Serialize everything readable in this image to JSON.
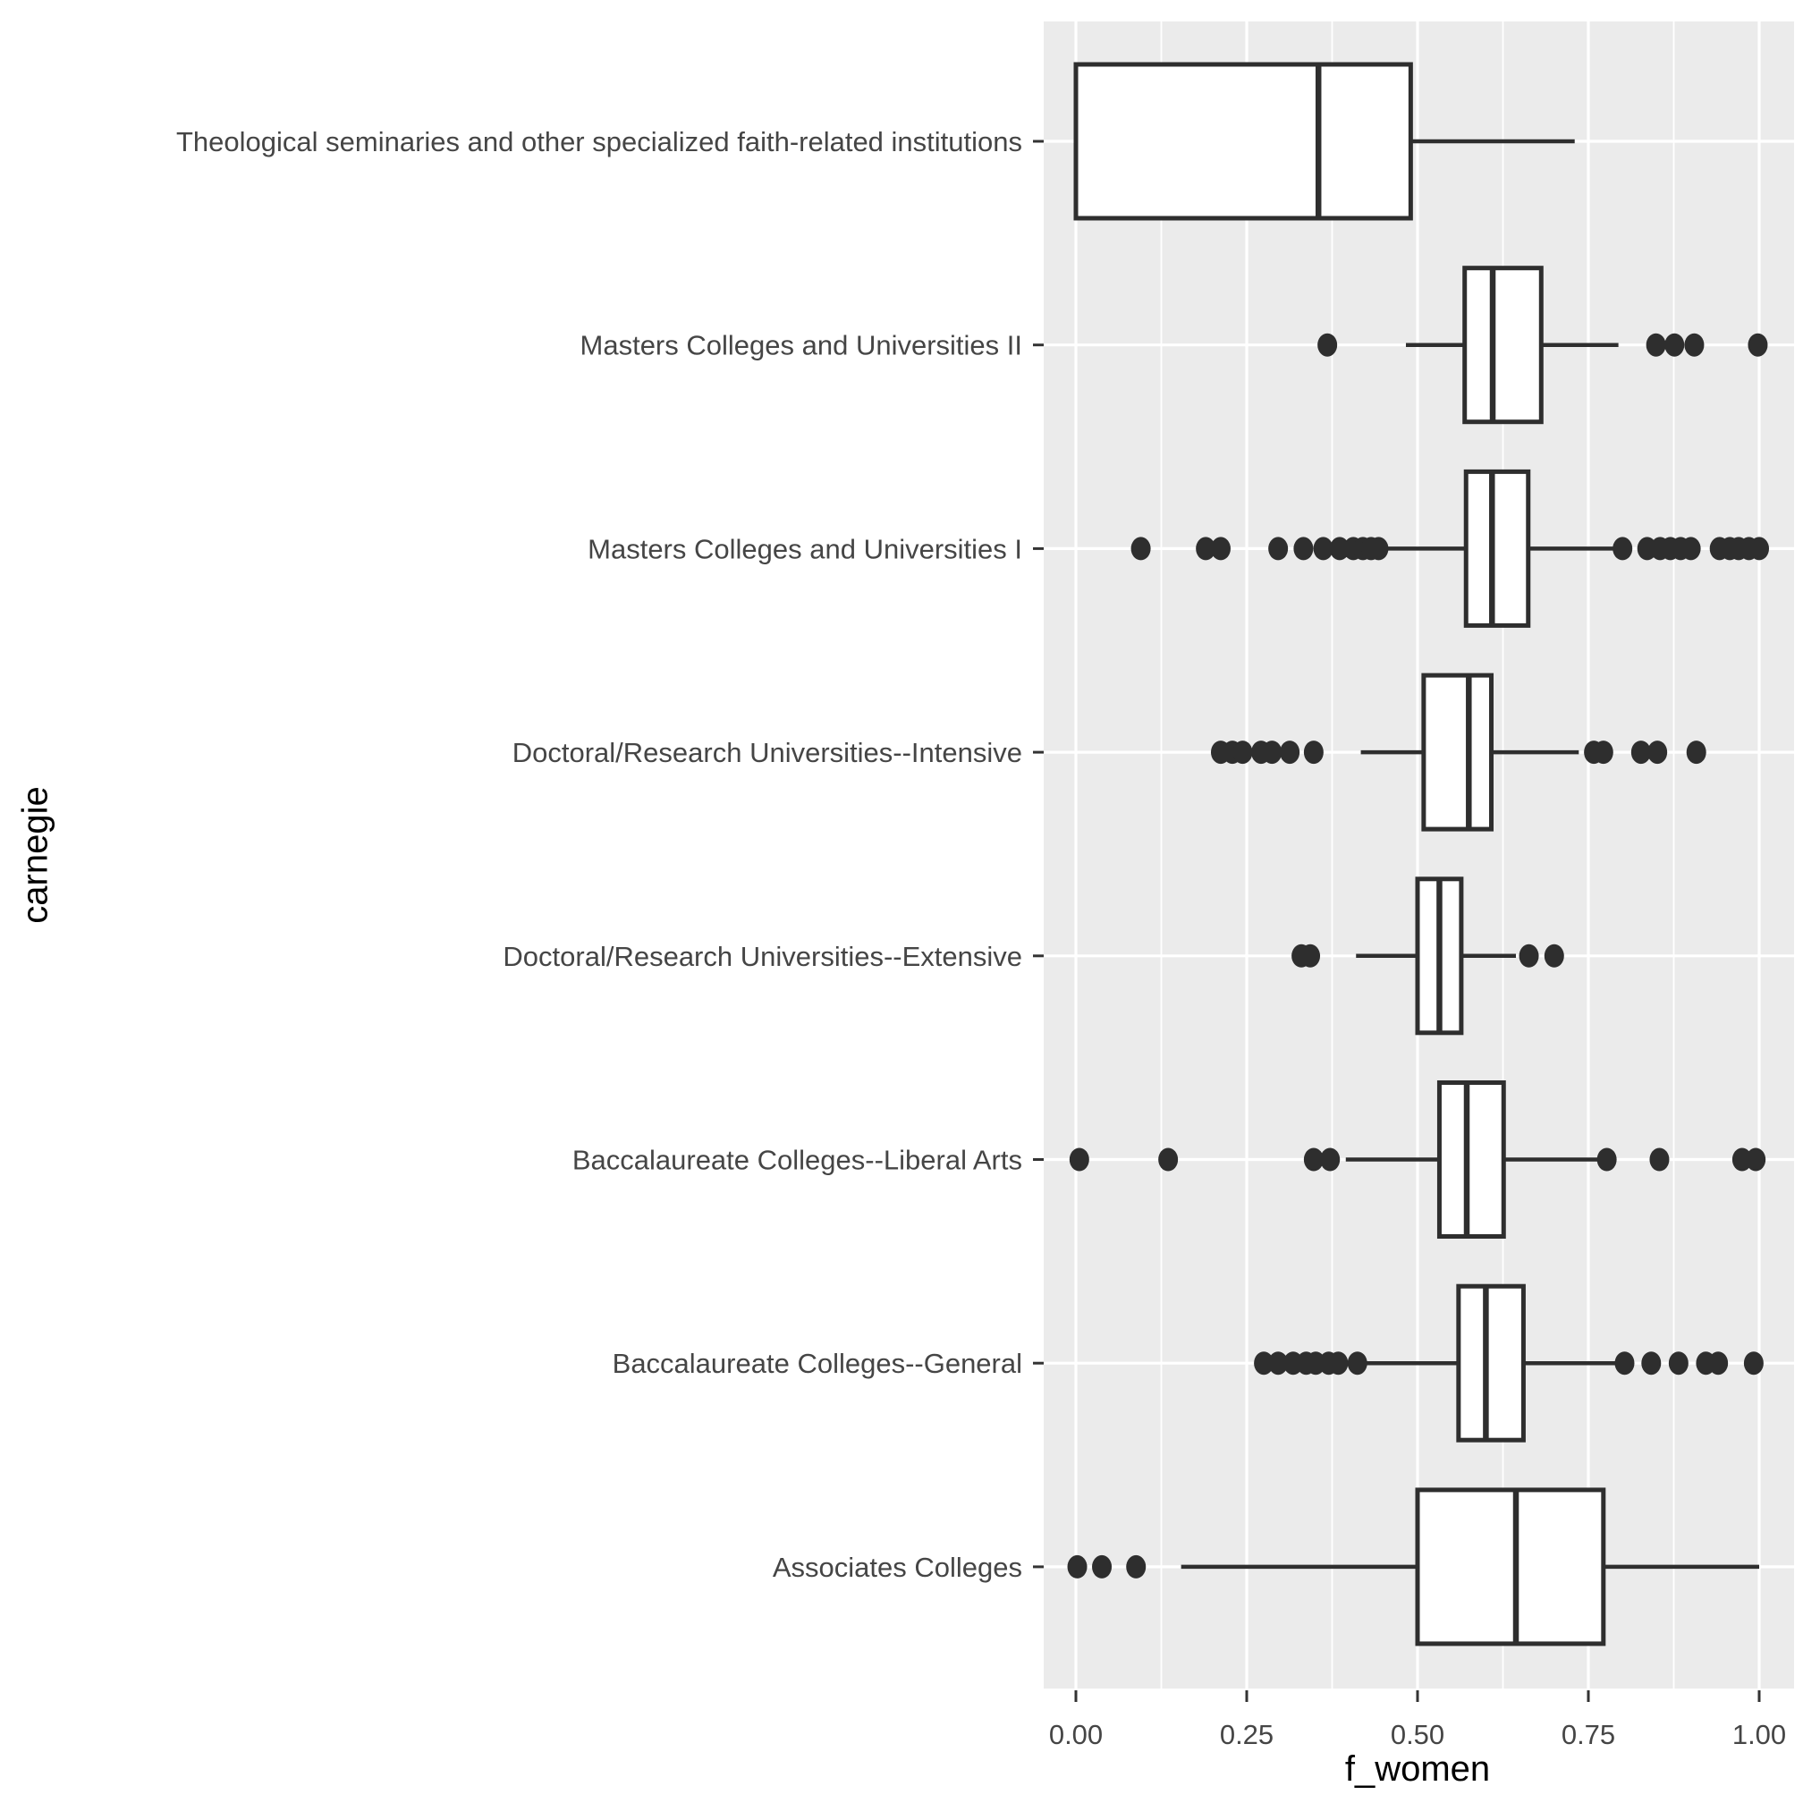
{
  "chart_data": {
    "type": "boxplot",
    "orientation": "horizontal",
    "title": "",
    "xlabel": "f_women",
    "ylabel": "carnegie",
    "x_axis": {
      "ticks": [
        0.0,
        0.25,
        0.5,
        0.75,
        1.0
      ],
      "tick_labels": [
        "0.00",
        "0.25",
        "0.50",
        "0.75",
        "1.00"
      ],
      "minor_ticks": [
        0.125,
        0.375,
        0.625,
        0.875
      ],
      "range": [
        0.0,
        1.0
      ]
    },
    "legend": "none",
    "grid": "major-and-minor-vertical, major-horizontal",
    "panel": {
      "background": "#EBEBEB",
      "grid_color": "#FFFFFF"
    },
    "style": {
      "box_fill": "#FFFFFF",
      "line_color": "#2E2E2E",
      "outlier_color": "#2E2E2E",
      "axis_text_color": "#454545",
      "axis_title_color": "#000000",
      "tick_color": "#333333"
    },
    "categories": [
      {
        "label": "Theological seminaries and other specialized faith-related institutions",
        "whisker_low": 0.0,
        "q1": 0.0,
        "median": 0.355,
        "q3": 0.49,
        "whisker_high": 0.73,
        "outliers": []
      },
      {
        "label": "Masters Colleges and Universities II",
        "whisker_low": 0.483,
        "q1": 0.569,
        "median": 0.61,
        "q3": 0.681,
        "whisker_high": 0.794,
        "outliers": [
          0.368,
          0.849,
          0.876,
          0.905,
          0.998
        ]
      },
      {
        "label": "Masters Colleges and Universities I",
        "whisker_low": 0.45,
        "q1": 0.571,
        "median": 0.609,
        "q3": 0.662,
        "whisker_high": 0.788,
        "outliers": [
          0.095,
          0.19,
          0.212,
          0.296,
          0.333,
          0.362,
          0.386,
          0.406,
          0.42,
          0.432,
          0.443,
          0.8,
          0.836,
          0.855,
          0.87,
          0.885,
          0.9,
          0.942,
          0.957,
          0.97,
          0.985,
          1.0
        ]
      },
      {
        "label": "Doctoral/Research Universities--Intensive",
        "whisker_low": 0.417,
        "q1": 0.509,
        "median": 0.575,
        "q3": 0.608,
        "whisker_high": 0.736,
        "outliers": [
          0.212,
          0.229,
          0.244,
          0.271,
          0.287,
          0.313,
          0.348,
          0.758,
          0.772,
          0.827,
          0.851,
          0.908
        ]
      },
      {
        "label": "Doctoral/Research Universities--Extensive",
        "whisker_low": 0.41,
        "q1": 0.5,
        "median": 0.532,
        "q3": 0.564,
        "whisker_high": 0.644,
        "outliers": [
          0.33,
          0.343,
          0.663,
          0.7
        ]
      },
      {
        "label": "Baccalaureate Colleges--Liberal Arts",
        "whisker_low": 0.395,
        "q1": 0.532,
        "median": 0.572,
        "q3": 0.626,
        "whisker_high": 0.77,
        "outliers": [
          0.005,
          0.135,
          0.348,
          0.372,
          0.777,
          0.854,
          0.975,
          0.995
        ]
      },
      {
        "label": "Baccalaureate Colleges--General",
        "whisker_low": 0.42,
        "q1": 0.56,
        "median": 0.6,
        "q3": 0.655,
        "whisker_high": 0.793,
        "outliers": [
          0.275,
          0.296,
          0.318,
          0.337,
          0.351,
          0.37,
          0.384,
          0.412,
          0.803,
          0.842,
          0.882,
          0.922,
          0.94,
          0.992
        ]
      },
      {
        "label": "Associates Colleges",
        "whisker_low": 0.154,
        "q1": 0.5,
        "median": 0.644,
        "q3": 0.772,
        "whisker_high": 1.0,
        "outliers": [
          0.002,
          0.038,
          0.088
        ]
      }
    ]
  }
}
